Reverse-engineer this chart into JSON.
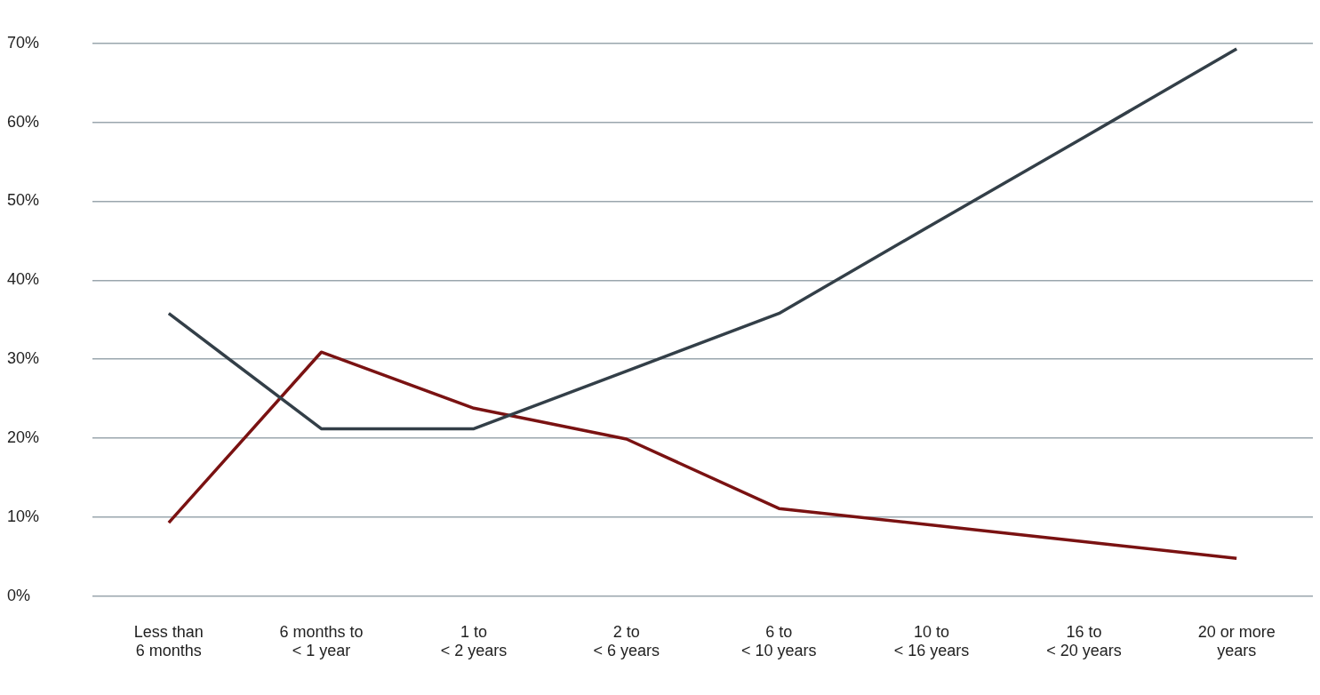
{
  "chart_data": {
    "type": "line",
    "categories": [
      "Less than\n6 months",
      "6 months to\n< 1 year",
      "1 to\n< 2 years",
      "2 to\n< 6 years",
      "6 to\n< 10 years",
      "10 to\n< 16 years",
      "16 to\n< 20 years",
      "20 or more\nyears"
    ],
    "series": [
      {
        "color": "#333f48",
        "values": [
          35.8,
          21.2,
          21.2,
          28.5,
          35.8,
          47.0,
          58.1,
          69.3
        ]
      },
      {
        "color": "#7a1212",
        "values": [
          9.3,
          30.9,
          23.8,
          19.9,
          11.1,
          9.0,
          6.9,
          4.8
        ]
      }
    ],
    "ylim": [
      0,
      70
    ],
    "yticks": [
      {
        "value": 0,
        "label": "0%"
      },
      {
        "value": 10,
        "label": "10%"
      },
      {
        "value": 20,
        "label": "20%"
      },
      {
        "value": 30,
        "label": "30%"
      },
      {
        "value": 40,
        "label": "40%"
      },
      {
        "value": 50,
        "label": "50%"
      },
      {
        "value": 60,
        "label": "60%"
      },
      {
        "value": 70,
        "label": "70%"
      }
    ],
    "grid": "y",
    "legend": false,
    "marker": "none",
    "line_style": "solid"
  }
}
